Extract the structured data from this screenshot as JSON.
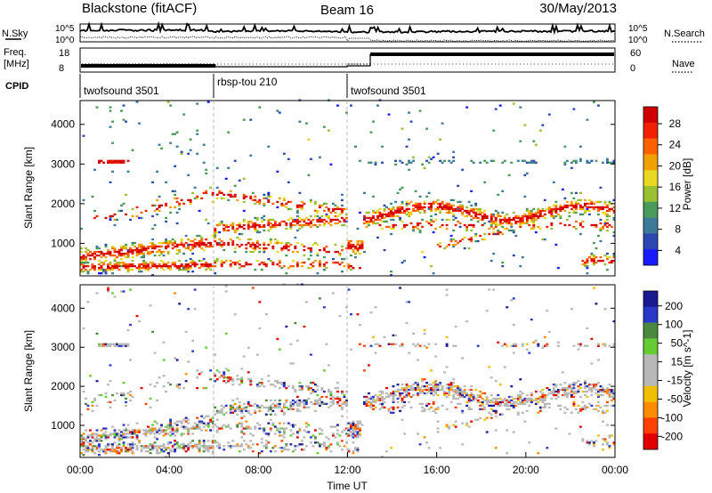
{
  "header": {
    "title_left": "Blackstone (fitACF)",
    "title_center": "Beam 16",
    "title_right": "30/May/2013"
  },
  "noise_panel": {
    "left_label": "N.Sky",
    "right_label": "N.Search",
    "left_ticks": [
      "10^5",
      "10^0"
    ],
    "right_ticks": [
      "10^5",
      "10^0"
    ]
  },
  "freq_panel": {
    "left_label_1": "Freq.",
    "left_label_2": "[MHz]",
    "left_ticks": [
      "18",
      "8"
    ],
    "right_ticks": [
      "60",
      "0"
    ],
    "right_label": "Nave"
  },
  "cpid": {
    "label": "CPID",
    "segments": [
      {
        "name": "twofsound 3501",
        "start_h": 0,
        "end_h": 6
      },
      {
        "name": "rbsp-tou 210",
        "start_h": 6,
        "end_h": 12
      },
      {
        "name": "twofsound 3501",
        "start_h": 12,
        "end_h": 24
      }
    ]
  },
  "chart_data": [
    {
      "type": "heatmap",
      "title": "Power",
      "ylabel": "Slant Range [km]",
      "xlabel": "Time UT",
      "xlim": [
        0,
        24
      ],
      "ylim": [
        180,
        4600
      ],
      "yticks": [
        "1000",
        "2000",
        "3000",
        "4000"
      ],
      "colorbar_label": "Power [dB]",
      "colorbar_ticks": [
        "28",
        "24",
        "20",
        "16",
        "12",
        "8",
        "4"
      ],
      "colorbar_colors": [
        "#1a1aff",
        "#2c48b0",
        "#3c7a9a",
        "#4a9a5a",
        "#9ac030",
        "#e8d820",
        "#f0a000",
        "#ff6000",
        "#f02000",
        "#d00000"
      ],
      "features": [
        {
          "label": "morning band",
          "x": [
            0,
            6
          ],
          "y": [
            300,
            1400
          ]
        },
        {
          "label": "afternoon band",
          "x": [
            12.5,
            24
          ],
          "y": [
            1500,
            2300
          ]
        },
        {
          "label": "3000 km echoes",
          "x": [
            0.8,
            2
          ],
          "y": [
            3000,
            3100
          ]
        }
      ]
    },
    {
      "type": "heatmap",
      "title": "Velocity",
      "ylabel": "Slant Range [km]",
      "xlabel": "Time UT",
      "xlim": [
        0,
        24
      ],
      "ylim": [
        180,
        4600
      ],
      "yticks": [
        "1000",
        "2000",
        "3000",
        "4000"
      ],
      "colorbar_label": "Velocity [m s^-1]",
      "colorbar_ticks": [
        "200",
        "100",
        "50",
        "15",
        "-15",
        "-50",
        "-100",
        "-200"
      ],
      "colorbar_colors": [
        "#1a1a90",
        "#2a38c8",
        "#4a8840",
        "#66cc33",
        "#b8b8b8",
        "#b8b8b8",
        "#f0c000",
        "#ff8c00",
        "#ff4000",
        "#e00000"
      ]
    }
  ],
  "xaxis": {
    "ticks": [
      "00:00",
      "04:00",
      "08:00",
      "12:00",
      "16:00",
      "20:00",
      "00:00"
    ],
    "label": "Time UT"
  }
}
